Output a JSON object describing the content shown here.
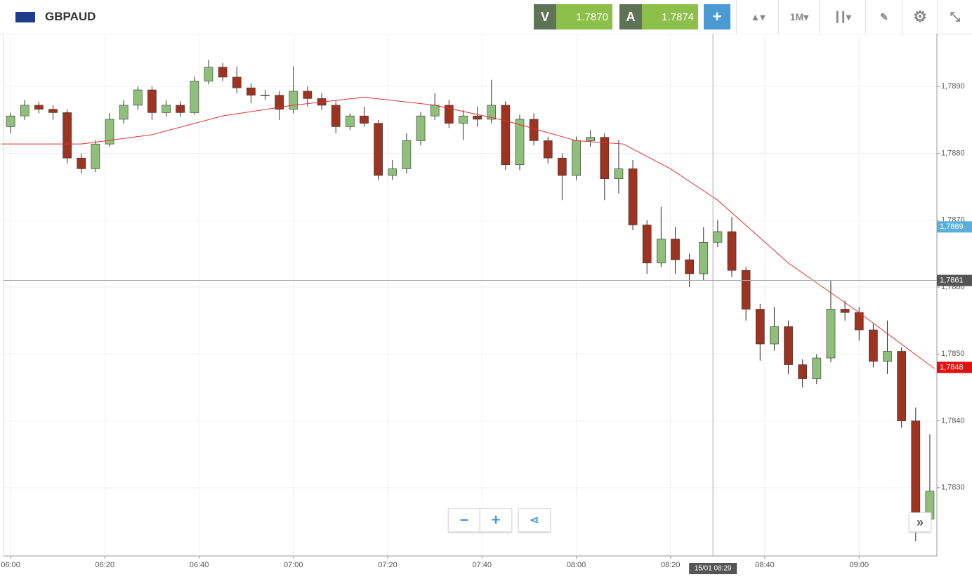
{
  "header": {
    "symbol": "GBPAUD",
    "sell": {
      "label": "V",
      "price": "1.7870"
    },
    "buy": {
      "label": "A",
      "price": "1.7874"
    },
    "timeframe": "1M"
  },
  "chart_data": {
    "type": "candlestick",
    "x": [
      0,
      3,
      6,
      9,
      12,
      15,
      18,
      21,
      24,
      27,
      30,
      33,
      36,
      39,
      42,
      45,
      48,
      51,
      54,
      57,
      60,
      63,
      66,
      69,
      72,
      75,
      78,
      81,
      84,
      87,
      90,
      93,
      96,
      99,
      102,
      105,
      108,
      111,
      114,
      117,
      120,
      123,
      126,
      129,
      132,
      135,
      138,
      141,
      144,
      147,
      150,
      153,
      156,
      159,
      162,
      165,
      168,
      171,
      174,
      177,
      180,
      183,
      186,
      189,
      192,
      195
    ],
    "open": [
      1.7884,
      1.78856,
      1.78872,
      1.78866,
      1.78861,
      1.78793,
      1.78777,
      1.78814,
      1.78851,
      1.78872,
      1.78895,
      1.78861,
      1.78872,
      1.78861,
      1.78908,
      1.78929,
      1.78914,
      1.78898,
      1.78887,
      1.78887,
      1.78866,
      1.78893,
      1.78882,
      1.78872,
      1.7884,
      1.78856,
      1.78845,
      1.78767,
      1.78777,
      1.78819,
      1.78856,
      1.78872,
      1.78845,
      1.78856,
      1.78851,
      1.78872,
      1.78783,
      1.78851,
      1.78819,
      1.78793,
      1.78767,
      1.78819,
      1.78824,
      1.78762,
      1.78777,
      1.78693,
      1.78636,
      1.78672,
      1.78641,
      1.7862,
      1.78667,
      1.78683,
      1.78625,
      1.78567,
      1.78515,
      1.78541,
      1.78484,
      1.78463,
      1.78494,
      1.78567,
      1.78562,
      1.78536,
      1.78489,
      1.78504,
      1.784,
      1.78253
    ],
    "high": [
      1.78861,
      1.7888,
      1.78877,
      1.78872,
      1.78866,
      1.788,
      1.7882,
      1.7886,
      1.7888,
      1.789,
      1.789,
      1.7888,
      1.78878,
      1.78915,
      1.7894,
      1.78935,
      1.7893,
      1.78905,
      1.78895,
      1.78893,
      1.7893,
      1.789,
      1.7889,
      1.78878,
      1.7886,
      1.7887,
      1.7885,
      1.7879,
      1.7883,
      1.78862,
      1.7889,
      1.7888,
      1.78865,
      1.7887,
      1.7891,
      1.78878,
      1.78858,
      1.7886,
      1.78825,
      1.788,
      1.78825,
      1.78835,
      1.7883,
      1.7882,
      1.7879,
      1.787,
      1.7872,
      1.7869,
      1.7865,
      1.7869,
      1.787,
      1.78705,
      1.7863,
      1.78575,
      1.7857,
      1.7855,
      1.78492,
      1.785,
      1.7861,
      1.7858,
      1.7857,
      1.78545,
      1.7855,
      1.7851,
      1.7842,
      1.7838
    ],
    "low": [
      1.7883,
      1.7885,
      1.7886,
      1.7885,
      1.78785,
      1.7877,
      1.78772,
      1.7881,
      1.78845,
      1.78865,
      1.7885,
      1.78855,
      1.78855,
      1.78858,
      1.78903,
      1.78908,
      1.7889,
      1.78875,
      1.7888,
      1.7885,
      1.7886,
      1.7887,
      1.78865,
      1.7883,
      1.78835,
      1.7884,
      1.7876,
      1.7876,
      1.7877,
      1.78812,
      1.7885,
      1.78838,
      1.7882,
      1.7884,
      1.78845,
      1.78775,
      1.78775,
      1.78812,
      1.78785,
      1.7873,
      1.7876,
      1.7881,
      1.7873,
      1.7874,
      1.78685,
      1.7862,
      1.7863,
      1.7862,
      1.786,
      1.7861,
      1.7866,
      1.78615,
      1.7855,
      1.7849,
      1.78505,
      1.7847,
      1.7845,
      1.78455,
      1.78488,
      1.7855,
      1.7852,
      1.7848,
      1.7847,
      1.7839,
      1.7822,
      1.7824
    ],
    "close": [
      1.78856,
      1.78872,
      1.78866,
      1.78861,
      1.78793,
      1.78777,
      1.78814,
      1.78851,
      1.78872,
      1.78895,
      1.78861,
      1.78872,
      1.78861,
      1.78908,
      1.78929,
      1.78914,
      1.78898,
      1.78887,
      1.78887,
      1.78866,
      1.78893,
      1.78882,
      1.78872,
      1.7884,
      1.78856,
      1.78845,
      1.78767,
      1.78777,
      1.78819,
      1.78856,
      1.78872,
      1.78845,
      1.78856,
      1.78851,
      1.78872,
      1.78783,
      1.78851,
      1.78819,
      1.78793,
      1.78767,
      1.78819,
      1.78824,
      1.78762,
      1.78777,
      1.78693,
      1.78636,
      1.78672,
      1.78641,
      1.7862,
      1.78667,
      1.78683,
      1.78625,
      1.78567,
      1.78515,
      1.78541,
      1.78484,
      1.78463,
      1.78494,
      1.78567,
      1.78562,
      1.78536,
      1.78489,
      1.78504,
      1.784,
      1.78253,
      1.78295
    ],
    "up_color": "#8fbf7a",
    "down_color": "#9e3322",
    "overlays": [
      {
        "color": "#e03030",
        "x": [
          -2,
          15,
          30,
          45,
          60,
          75,
          90,
          105,
          120,
          130,
          140,
          150,
          165,
          180,
          196
        ],
        "values": [
          1.78814,
          1.78814,
          1.78828,
          1.78856,
          1.78872,
          1.78884,
          1.78872,
          1.78849,
          1.78819,
          1.78814,
          1.78777,
          1.7873,
          1.78636,
          1.78562,
          1.78478
        ]
      }
    ],
    "xlim": [
      -1.5,
      196.5
    ],
    "xticks": [
      {
        "value": 0,
        "label": "06:00"
      },
      {
        "value": 20,
        "label": "06:20"
      },
      {
        "value": 40,
        "label": "06:40"
      },
      {
        "value": 60,
        "label": "07:00"
      },
      {
        "value": 80,
        "label": "07:20"
      },
      {
        "value": 100,
        "label": "07:40"
      },
      {
        "value": 120,
        "label": "08:00"
      },
      {
        "value": 140,
        "label": "08:20"
      },
      {
        "value": 160,
        "label": "08:40"
      },
      {
        "value": 180,
        "label": "09:00"
      }
    ],
    "ylim": [
      1.78198,
      1.78979
    ],
    "yticks": [
      {
        "value": 1.783,
        "label": "1,7830"
      },
      {
        "value": 1.784,
        "label": "1,7840"
      },
      {
        "value": 1.785,
        "label": "1,7850"
      },
      {
        "value": 1.786,
        "label": "1,7860"
      },
      {
        "value": 1.787,
        "label": "1,7870"
      },
      {
        "value": 1.788,
        "label": "1,7880"
      },
      {
        "value": 1.789,
        "label": "1,7890"
      }
    ],
    "grid": true,
    "price_labels": [
      {
        "value": 1.7869,
        "label": "1,7869",
        "color": "#5aaedc"
      },
      {
        "value": 1.7848,
        "label": "1,7848",
        "color": "#e4100f"
      }
    ],
    "crosshair": {
      "x": 149,
      "x_label": "15/01 08:29",
      "y": 1.7861,
      "y_label": "1,7861"
    }
  }
}
